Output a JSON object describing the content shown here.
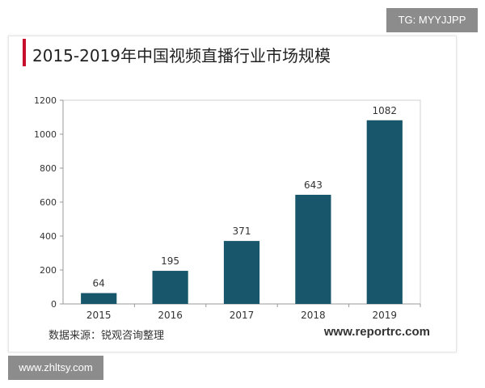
{
  "watermark_top_right": "TG: MYYJJPP",
  "watermark_bottom_left": "www.zhltsy.com",
  "source_text": "数据来源：锐观咨询整理",
  "site_text": "www.reportrc.com",
  "colors": {
    "bar": "#18576b",
    "title_accent": "#c8102e",
    "axis": "#999999"
  },
  "chart_data": {
    "type": "bar",
    "title": "2015-2019年中国视频直播行业市场规模",
    "xlabel": "",
    "ylabel": "",
    "categories": [
      "2015",
      "2016",
      "2017",
      "2018",
      "2019"
    ],
    "values": [
      64,
      195,
      371,
      643,
      1082
    ],
    "ylim": [
      0,
      1200
    ],
    "yticks": [
      0,
      200,
      400,
      600,
      800,
      1000,
      1200
    ],
    "grid": false,
    "legend": "none",
    "data_labels": true
  }
}
